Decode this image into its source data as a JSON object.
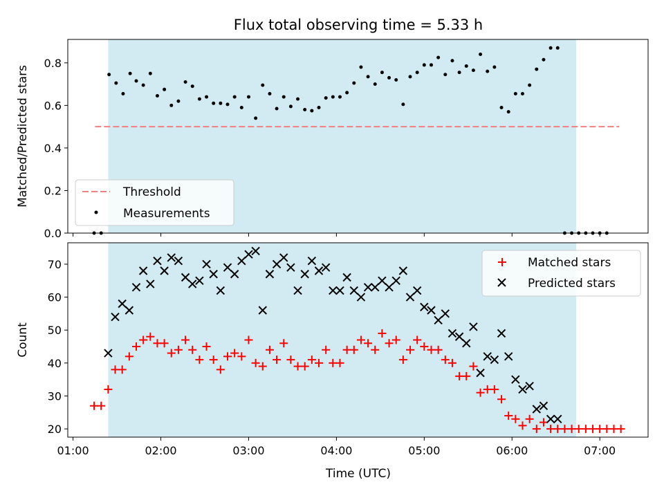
{
  "title": "Flux total observing time = 5.33 h",
  "chart_data": [
    {
      "type": "scatter",
      "ylabel": "Matched/Predicted stars",
      "xlabel": "",
      "ylim": [
        0,
        0.91
      ],
      "yticks": [
        0.0,
        0.2,
        0.4,
        0.6,
        0.8
      ],
      "ytick_labels": [
        "0.0",
        "0.2",
        "0.4",
        "0.6",
        "0.8"
      ],
      "xlim": [
        0.94,
        7.55
      ],
      "shaded_span": [
        1.4,
        6.73
      ],
      "shade_color": "#add8e6",
      "threshold": {
        "name": "Threshold",
        "y": 0.5,
        "x_range": [
          1.25,
          7.22
        ],
        "color": "#f08080"
      },
      "legend_position": "lower left",
      "series": [
        {
          "name": "Measurements",
          "color": "#000000",
          "points": [
            [
              1.24,
              0.0
            ],
            [
              1.32,
              0.0
            ],
            [
              1.41,
              0.745
            ],
            [
              1.49,
              0.705
            ],
            [
              1.57,
              0.655
            ],
            [
              1.65,
              0.75
            ],
            [
              1.72,
              0.715
            ],
            [
              1.8,
              0.695
            ],
            [
              1.88,
              0.75
            ],
            [
              1.96,
              0.645
            ],
            [
              2.04,
              0.675
            ],
            [
              2.12,
              0.6
            ],
            [
              2.2,
              0.62
            ],
            [
              2.28,
              0.71
            ],
            [
              2.36,
              0.69
            ],
            [
              2.44,
              0.63
            ],
            [
              2.52,
              0.64
            ],
            [
              2.6,
              0.61
            ],
            [
              2.68,
              0.61
            ],
            [
              2.76,
              0.605
            ],
            [
              2.84,
              0.64
            ],
            [
              2.92,
              0.59
            ],
            [
              3.0,
              0.64
            ],
            [
              3.08,
              0.54
            ],
            [
              3.16,
              0.695
            ],
            [
              3.24,
              0.655
            ],
            [
              3.32,
              0.585
            ],
            [
              3.4,
              0.64
            ],
            [
              3.48,
              0.595
            ],
            [
              3.56,
              0.63
            ],
            [
              3.64,
              0.58
            ],
            [
              3.72,
              0.575
            ],
            [
              3.8,
              0.59
            ],
            [
              3.88,
              0.635
            ],
            [
              3.96,
              0.64
            ],
            [
              4.04,
              0.64
            ],
            [
              4.12,
              0.66
            ],
            [
              4.2,
              0.705
            ],
            [
              4.28,
              0.78
            ],
            [
              4.36,
              0.735
            ],
            [
              4.44,
              0.7
            ],
            [
              4.52,
              0.755
            ],
            [
              4.6,
              0.73
            ],
            [
              4.68,
              0.72
            ],
            [
              4.76,
              0.605
            ],
            [
              4.84,
              0.735
            ],
            [
              4.92,
              0.755
            ],
            [
              5.0,
              0.79
            ],
            [
              5.08,
              0.79
            ],
            [
              5.16,
              0.825
            ],
            [
              5.24,
              0.745
            ],
            [
              5.32,
              0.81
            ],
            [
              5.4,
              0.755
            ],
            [
              5.48,
              0.785
            ],
            [
              5.56,
              0.765
            ],
            [
              5.64,
              0.84
            ],
            [
              5.72,
              0.76
            ],
            [
              5.8,
              0.78
            ],
            [
              5.88,
              0.59
            ],
            [
              5.96,
              0.57
            ],
            [
              6.04,
              0.655
            ],
            [
              6.12,
              0.655
            ],
            [
              6.2,
              0.695
            ],
            [
              6.28,
              0.77
            ],
            [
              6.36,
              0.815
            ],
            [
              6.44,
              0.87
            ],
            [
              6.52,
              0.87
            ],
            [
              6.6,
              0.0
            ],
            [
              6.68,
              0.0
            ],
            [
              6.76,
              0.0
            ],
            [
              6.84,
              0.0
            ],
            [
              6.92,
              0.0
            ],
            [
              7.0,
              0.0
            ],
            [
              7.08,
              0.0
            ]
          ]
        }
      ]
    },
    {
      "type": "scatter",
      "ylabel": "Count",
      "xlabel": "Time (UTC)",
      "ylim": [
        17.5,
        76.5
      ],
      "yticks": [
        20,
        30,
        40,
        50,
        60,
        70
      ],
      "ytick_labels": [
        "20",
        "30",
        "40",
        "50",
        "60",
        "70"
      ],
      "xlim": [
        0.94,
        7.55
      ],
      "xticks": [
        1,
        2,
        3,
        4,
        5,
        6,
        7
      ],
      "xtick_labels": [
        "01:00",
        "02:00",
        "03:00",
        "04:00",
        "05:00",
        "06:00",
        "07:00"
      ],
      "shaded_span": [
        1.4,
        6.73
      ],
      "shade_color": "#add8e6",
      "legend_position": "upper right",
      "series": [
        {
          "name": "Matched stars",
          "marker": "plus",
          "color": "#ff0000",
          "points": [
            [
              1.24,
              27
            ],
            [
              1.32,
              27
            ],
            [
              1.4,
              32
            ],
            [
              1.48,
              38
            ],
            [
              1.56,
              38
            ],
            [
              1.64,
              42
            ],
            [
              1.72,
              45
            ],
            [
              1.8,
              47
            ],
            [
              1.88,
              48
            ],
            [
              1.96,
              46
            ],
            [
              2.04,
              46
            ],
            [
              2.12,
              43
            ],
            [
              2.2,
              44
            ],
            [
              2.28,
              47
            ],
            [
              2.36,
              44
            ],
            [
              2.44,
              41
            ],
            [
              2.52,
              45
            ],
            [
              2.6,
              41
            ],
            [
              2.68,
              38
            ],
            [
              2.76,
              42
            ],
            [
              2.84,
              43
            ],
            [
              2.92,
              42
            ],
            [
              3.0,
              47
            ],
            [
              3.08,
              40
            ],
            [
              3.16,
              39
            ],
            [
              3.24,
              44
            ],
            [
              3.32,
              41
            ],
            [
              3.4,
              46
            ],
            [
              3.48,
              41
            ],
            [
              3.56,
              39
            ],
            [
              3.64,
              39
            ],
            [
              3.72,
              41
            ],
            [
              3.8,
              40
            ],
            [
              3.88,
              44
            ],
            [
              3.96,
              40
            ],
            [
              4.04,
              40
            ],
            [
              4.12,
              44
            ],
            [
              4.2,
              44
            ],
            [
              4.28,
              47
            ],
            [
              4.36,
              46
            ],
            [
              4.44,
              44
            ],
            [
              4.52,
              49
            ],
            [
              4.6,
              46
            ],
            [
              4.68,
              47
            ],
            [
              4.76,
              41
            ],
            [
              4.84,
              44
            ],
            [
              4.92,
              47
            ],
            [
              5.0,
              45
            ],
            [
              5.08,
              44
            ],
            [
              5.16,
              44
            ],
            [
              5.24,
              41
            ],
            [
              5.32,
              40
            ],
            [
              5.4,
              36
            ],
            [
              5.48,
              36
            ],
            [
              5.56,
              39
            ],
            [
              5.64,
              31
            ],
            [
              5.72,
              32
            ],
            [
              5.8,
              32
            ],
            [
              5.88,
              29
            ],
            [
              5.96,
              24
            ],
            [
              6.04,
              23
            ],
            [
              6.12,
              21
            ],
            [
              6.2,
              23
            ],
            [
              6.28,
              20
            ],
            [
              6.36,
              22
            ],
            [
              6.44,
              20
            ],
            [
              6.52,
              20
            ],
            [
              6.6,
              20
            ],
            [
              6.68,
              20
            ],
            [
              6.76,
              20
            ],
            [
              6.84,
              20
            ],
            [
              6.92,
              20
            ],
            [
              7.0,
              20
            ],
            [
              7.08,
              20
            ],
            [
              7.16,
              20
            ],
            [
              7.24,
              20
            ]
          ]
        },
        {
          "name": "Predicted stars",
          "marker": "x",
          "color": "#000000",
          "points": [
            [
              1.4,
              43
            ],
            [
              1.48,
              54
            ],
            [
              1.56,
              58
            ],
            [
              1.64,
              56
            ],
            [
              1.72,
              63
            ],
            [
              1.8,
              68
            ],
            [
              1.88,
              64
            ],
            [
              1.96,
              71
            ],
            [
              2.04,
              68
            ],
            [
              2.12,
              72
            ],
            [
              2.2,
              71
            ],
            [
              2.28,
              66
            ],
            [
              2.36,
              64
            ],
            [
              2.44,
              65
            ],
            [
              2.52,
              70
            ],
            [
              2.6,
              67
            ],
            [
              2.68,
              62
            ],
            [
              2.76,
              69
            ],
            [
              2.84,
              67
            ],
            [
              2.92,
              71
            ],
            [
              3.0,
              73
            ],
            [
              3.08,
              74
            ],
            [
              3.16,
              56
            ],
            [
              3.24,
              67
            ],
            [
              3.32,
              70
            ],
            [
              3.4,
              72
            ],
            [
              3.48,
              69
            ],
            [
              3.56,
              62
            ],
            [
              3.64,
              67
            ],
            [
              3.72,
              71
            ],
            [
              3.8,
              68
            ],
            [
              3.88,
              69
            ],
            [
              3.96,
              62
            ],
            [
              4.04,
              62
            ],
            [
              4.12,
              66
            ],
            [
              4.2,
              62
            ],
            [
              4.28,
              60
            ],
            [
              4.36,
              63
            ],
            [
              4.44,
              63
            ],
            [
              4.52,
              65
            ],
            [
              4.6,
              63
            ],
            [
              4.68,
              65
            ],
            [
              4.76,
              68
            ],
            [
              4.84,
              60
            ],
            [
              4.92,
              62
            ],
            [
              5.0,
              57
            ],
            [
              5.08,
              56
            ],
            [
              5.16,
              53
            ],
            [
              5.24,
              55
            ],
            [
              5.32,
              49
            ],
            [
              5.4,
              48
            ],
            [
              5.48,
              46
            ],
            [
              5.56,
              51
            ],
            [
              5.64,
              37
            ],
            [
              5.72,
              42
            ],
            [
              5.8,
              41
            ],
            [
              5.88,
              49
            ],
            [
              5.96,
              42
            ],
            [
              6.04,
              35
            ],
            [
              6.12,
              32
            ],
            [
              6.2,
              33
            ],
            [
              6.28,
              26
            ],
            [
              6.36,
              27
            ],
            [
              6.44,
              23
            ],
            [
              6.52,
              23
            ]
          ]
        }
      ]
    }
  ]
}
